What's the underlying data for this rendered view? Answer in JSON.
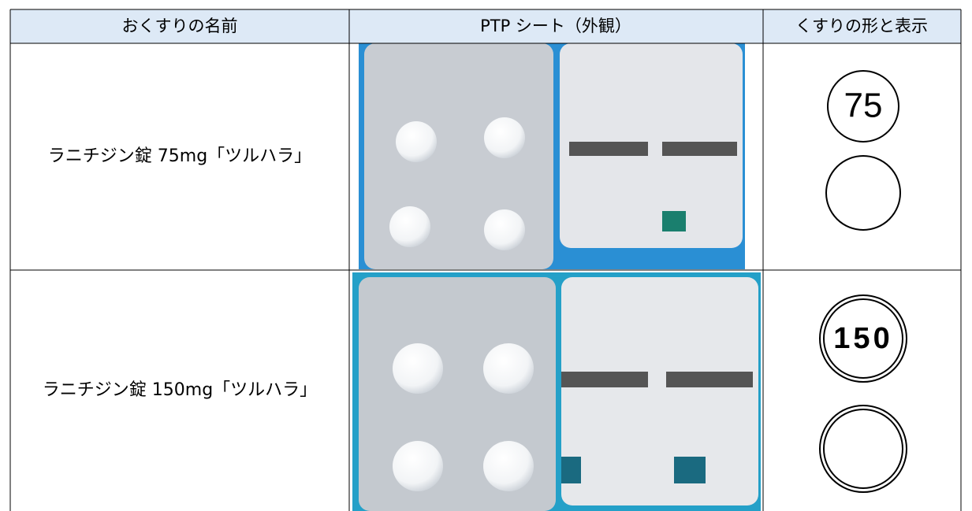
{
  "table": {
    "header": [
      "おくすりの名前",
      "PTP シート（外観）",
      "くすりの形と表示"
    ],
    "rows": [
      {
        "name": "ラニチジン錠 75mg「ツルハラ」",
        "marking": "75"
      },
      {
        "name": "ラニチジン錠 150mg「ツルハラ」",
        "marking": "150"
      }
    ]
  }
}
